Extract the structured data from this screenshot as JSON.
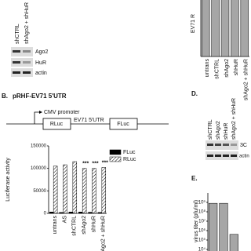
{
  "blot_a": {
    "lanes": [
      "shCTRL",
      "shAgo2 + shHuR"
    ],
    "rows": [
      "Ago2",
      "HuR",
      "actin"
    ]
  },
  "panel_b": {
    "label": "B.",
    "construct": "pRHF-EV71 5'UTR",
    "promoter": "CMV promoter",
    "boxes": [
      "RLuc",
      "FLuc"
    ],
    "utr": "EV71 5'UTR"
  },
  "panel_d": {
    "label": "D.",
    "lanes": [
      "shCTRL",
      "shAgo2",
      "shHuR",
      "shAgo2 + shHuR"
    ],
    "rows": [
      "3C",
      "actin"
    ]
  },
  "panel_e": {
    "label": "E."
  },
  "chart_data": [
    {
      "type": "bar",
      "y_label": "EV71 R",
      "categories": [
        "untrans",
        "shCTRL",
        "shAgo2",
        "shHuR",
        "shAgo2 + shHuR"
      ],
      "values": [
        1,
        1,
        1,
        1,
        1
      ],
      "ylim": [
        0,
        1.2
      ],
      "color": "#a6a6a6"
    },
    {
      "type": "bar",
      "y_label": "Luciferase activity",
      "categories": [
        "untrans",
        "AS",
        "shCTRL",
        "shAgo2",
        "shHuR",
        "shAgo2 + shHuR"
      ],
      "series": [
        {
          "name": "FLuc",
          "color": "#000000",
          "values": [
            3000,
            2000,
            3000,
            3000,
            2500,
            2000
          ]
        },
        {
          "name": "RLuc",
          "color": "#ffffff",
          "hatch": "#000000",
          "values": [
            105000,
            108000,
            115000,
            100000,
            100000,
            102000
          ]
        }
      ],
      "ylim": [
        0,
        150000
      ],
      "yticks": [
        0,
        50000,
        100000,
        150000
      ],
      "legend": "upper right",
      "annotations": [
        {
          "text": "***",
          "category": "shAgo2"
        },
        {
          "text": "***",
          "category": "shHuR"
        },
        {
          "text": "***",
          "category": "shAgo2 + shHuR"
        }
      ]
    },
    {
      "type": "bar",
      "y_label": "virus titer (pfu/ml)",
      "log": true,
      "categories": [
        null,
        null,
        null
      ],
      "values": [
        800000000,
        800000000,
        400000
      ],
      "color": "#a6a6a6",
      "ylim": [
        1000,
        10000000000
      ],
      "yticks": [
        {
          "value": 10000,
          "label": "10⁴"
        },
        {
          "value": 100000,
          "label": "10⁵"
        },
        {
          "value": 1000000,
          "label": "10⁶"
        },
        {
          "value": 10000000,
          "label": "10⁷"
        },
        {
          "value": 100000000,
          "label": "10⁸"
        },
        {
          "value": 1000000000,
          "label": "10⁹"
        }
      ]
    }
  ]
}
